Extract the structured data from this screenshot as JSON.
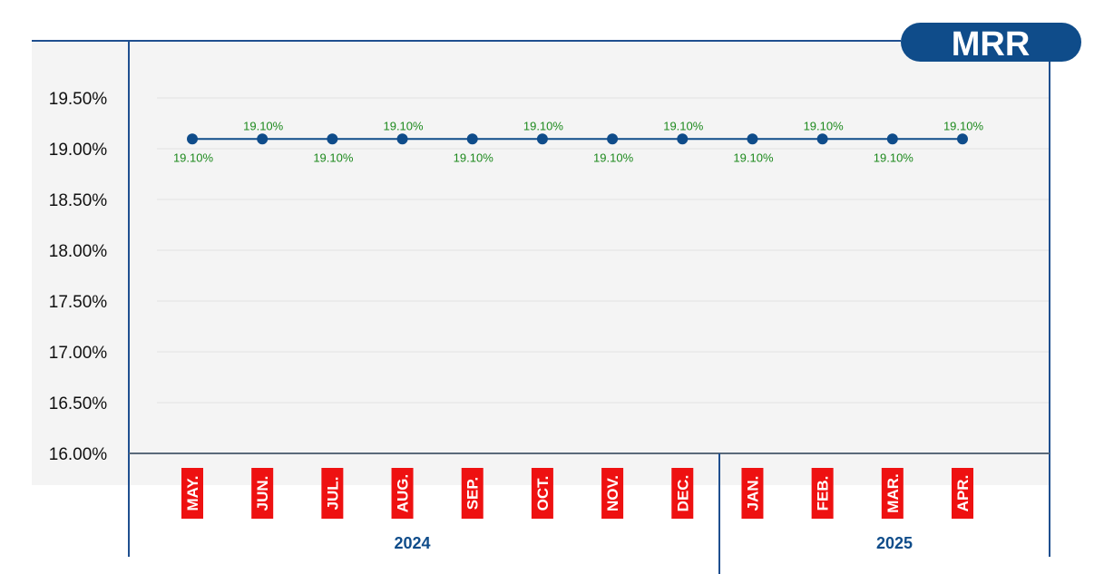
{
  "badge": {
    "label": "MRR"
  },
  "colors": {
    "line": "#0f4c8a",
    "frame": "#1f4f8f",
    "label": "#1e8a1e",
    "month_bg": "#ee1111",
    "plot_bg": "#f4f4f4",
    "grid": "#e2e2e2"
  },
  "chart_data": {
    "type": "line",
    "categories": [
      "MAY.",
      "JUN.",
      "JUL.",
      "AUG.",
      "SEP.",
      "OCT.",
      "NOV.",
      "DEC.",
      "JAN.",
      "FEB.",
      "MAR.",
      "APR."
    ],
    "series": [
      {
        "values": [
          19.1,
          19.1,
          19.1,
          19.1,
          19.1,
          19.1,
          19.1,
          19.1,
          19.1,
          19.1,
          19.1,
          19.1
        ],
        "data_labels": [
          "19.10%",
          "19.10%",
          "19.10%",
          "19.10%",
          "19.10%",
          "19.10%",
          "19.10%",
          "19.10%",
          "19.10%",
          "19.10%",
          "19.10%",
          "19.10%"
        ]
      }
    ],
    "year_groups": [
      {
        "label": "2024",
        "categories": 8
      },
      {
        "label": "2025",
        "categories": 4
      }
    ],
    "yticks": [
      "16.00%",
      "16.50%",
      "17.00%",
      "17.50%",
      "18.00%",
      "18.50%",
      "19.00%",
      "19.50%"
    ],
    "ylim": [
      16.0,
      19.75
    ],
    "grid": true,
    "title": "",
    "xlabel": "",
    "ylabel": ""
  }
}
